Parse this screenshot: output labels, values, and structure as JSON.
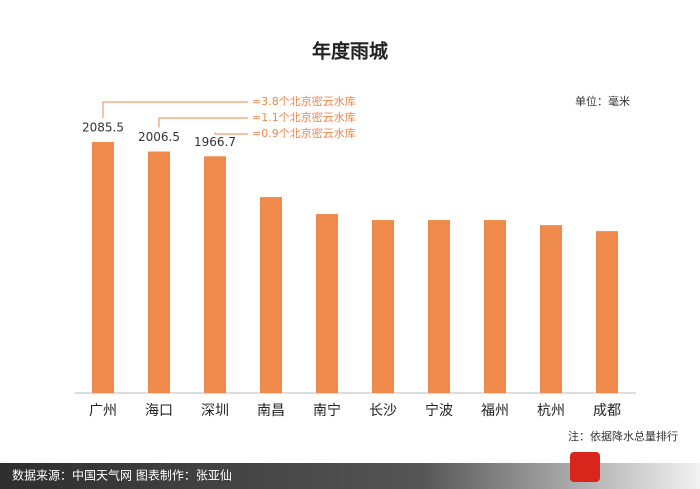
{
  "chart_data": {
    "type": "bar",
    "title": "年度雨城",
    "unit_label": "单位：毫米",
    "categories": [
      "广州",
      "海口",
      "深圳",
      "南昌",
      "南宁",
      "长沙",
      "宁波",
      "福州",
      "杭州",
      "成都"
    ],
    "values": [
      2085.5,
      2006.5,
      1966.7,
      1628,
      1487,
      1437,
      1437,
      1437,
      1395,
      1345
    ],
    "value_labels": [
      "2085.5",
      "2006.5",
      "1966.7",
      null,
      null,
      null,
      null,
      null,
      null,
      null
    ],
    "annotations": [
      "≈3.8个北京密云水库",
      "≈1.1个北京密云水库",
      "≈0.9个北京密云水库"
    ],
    "color": "#ee8a4c",
    "annotation_color": "#f0864a",
    "ylim": [
      0,
      2085.5
    ],
    "note": "注：依据降水总量排行",
    "footer": "数据来源：中国天气网   图表制作：张亚仙"
  }
}
